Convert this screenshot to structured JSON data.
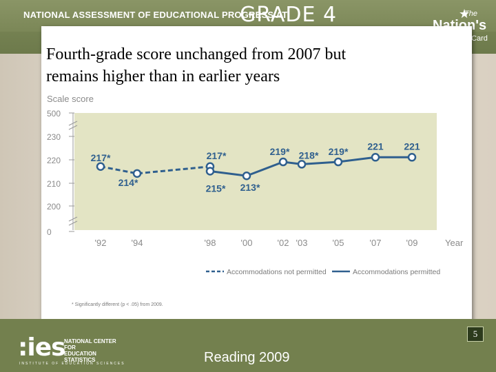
{
  "header": {
    "banner_text": "NATIONAL ASSESSMENT OF EDUCATIONAL PROGRESS AT",
    "grade": "GRADE 4",
    "brand_the": "The",
    "brand_nations": "Nation's",
    "brand_report_card": "Report Card"
  },
  "slide": {
    "title_line1": "Fourth-grade score unchanged from 2007 but",
    "title_line2": "remains higher than in earlier years",
    "footnote": "* Significantly different (p < .05) from 2009.",
    "page_number": "5"
  },
  "footer": {
    "ies": ":ies",
    "nces_line1": "NATIONAL CENTER FOR",
    "nces_line2": "EDUCATION STATISTICS",
    "ies_sub": "INSTITUTE OF EDUCATION SCIENCES",
    "reading": "Reading 2009"
  },
  "colors": {
    "banner": "#7e8a5a",
    "plot_bg": "#e3e4c4",
    "line": "#2f5f8e",
    "footer": "#73804e"
  },
  "chart_data": {
    "type": "line",
    "ylabel": "Scale score",
    "xlabel": "Year",
    "ylim": [
      195,
      235
    ],
    "yticks": [
      0,
      200,
      210,
      220,
      230,
      500
    ],
    "y_axis_broken": true,
    "x": [
      "'92",
      "'94",
      "'98",
      "'00",
      "'02",
      "'03",
      "'05",
      "'07",
      "'09"
    ],
    "series": [
      {
        "name": "Accommodations not permitted",
        "style": "dashed",
        "points": [
          {
            "x": "'92",
            "y": 217,
            "label": "217*"
          },
          {
            "x": "'94",
            "y": 214,
            "label": "214*"
          },
          {
            "x": "'98",
            "y": 217,
            "label": "217*"
          }
        ]
      },
      {
        "name": "Accommodations permitted",
        "style": "solid",
        "points": [
          {
            "x": "'98",
            "y": 215,
            "label": "215*"
          },
          {
            "x": "'00",
            "y": 213,
            "label": "213*"
          },
          {
            "x": "'02",
            "y": 219,
            "label": "219*"
          },
          {
            "x": "'03",
            "y": 218,
            "label": "218*"
          },
          {
            "x": "'05",
            "y": 219,
            "label": "219*"
          },
          {
            "x": "'07",
            "y": 221,
            "label": "221"
          },
          {
            "x": "'09",
            "y": 221,
            "label": "221"
          }
        ]
      }
    ],
    "legend_position": "bottom-right",
    "grid": false
  }
}
